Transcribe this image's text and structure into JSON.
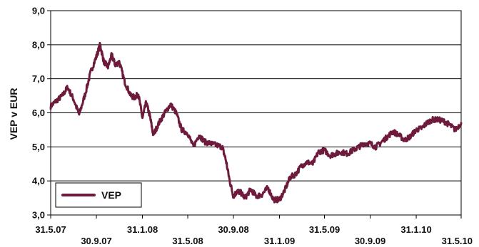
{
  "chart_data": {
    "type": "line",
    "ylabel": "VEP v EUR",
    "xlabel": "",
    "title": "",
    "ylim": [
      3.0,
      9.0
    ],
    "y_ticks": [
      "3,0",
      "4,0",
      "5,0",
      "6,0",
      "7,0",
      "8,0",
      "9,0"
    ],
    "x_ticks": [
      "31.5.07",
      "30.9.07",
      "31.1.08",
      "31.5.08",
      "30.9.08",
      "31.1.09",
      "31.5.09",
      "30.9.09",
      "31.1.10",
      "31.5.10"
    ],
    "grid": "horizontal",
    "legend_position": "bottom-left",
    "series": [
      {
        "name": "VEP",
        "color": "#6e1a3c",
        "x": [
          "2007-05-31",
          "2007-06-15",
          "2007-07-01",
          "2007-07-15",
          "2007-07-31",
          "2007-08-15",
          "2007-08-31",
          "2007-09-15",
          "2007-09-30",
          "2007-10-10",
          "2007-10-20",
          "2007-10-31",
          "2007-11-10",
          "2007-11-20",
          "2007-11-30",
          "2007-12-15",
          "2007-12-31",
          "2008-01-10",
          "2008-01-20",
          "2008-01-31",
          "2008-02-10",
          "2008-02-20",
          "2008-02-29",
          "2008-03-15",
          "2008-03-31",
          "2008-04-15",
          "2008-04-30",
          "2008-05-15",
          "2008-05-31",
          "2008-06-15",
          "2008-06-30",
          "2008-07-15",
          "2008-07-31",
          "2008-08-15",
          "2008-08-31",
          "2008-09-10",
          "2008-09-20",
          "2008-09-30",
          "2008-10-10",
          "2008-10-20",
          "2008-10-31",
          "2008-11-15",
          "2008-11-30",
          "2008-12-15",
          "2008-12-31",
          "2009-01-15",
          "2009-01-31",
          "2009-02-15",
          "2009-02-28",
          "2009-03-15",
          "2009-03-31",
          "2009-04-15",
          "2009-04-30",
          "2009-05-15",
          "2009-05-31",
          "2009-06-15",
          "2009-06-30",
          "2009-07-15",
          "2009-07-31",
          "2009-08-15",
          "2009-08-31",
          "2009-09-15",
          "2009-09-30",
          "2009-10-15",
          "2009-10-31",
          "2009-11-15",
          "2009-11-30",
          "2009-12-15",
          "2009-12-31",
          "2010-01-15",
          "2010-01-31",
          "2010-02-15",
          "2010-02-28",
          "2010-03-15",
          "2010-03-31",
          "2010-04-15",
          "2010-04-30",
          "2010-05-15",
          "2010-05-31"
        ],
        "values": [
          6.2,
          6.35,
          6.5,
          6.75,
          6.4,
          5.95,
          6.55,
          7.2,
          7.65,
          8.0,
          7.5,
          7.35,
          7.7,
          7.4,
          7.5,
          6.9,
          6.5,
          6.45,
          6.55,
          5.85,
          6.3,
          5.9,
          5.35,
          5.7,
          6.0,
          6.25,
          6.0,
          5.5,
          5.4,
          5.0,
          5.35,
          5.15,
          5.1,
          5.05,
          5.0,
          4.6,
          4.0,
          3.55,
          3.7,
          3.65,
          3.5,
          3.75,
          3.55,
          3.6,
          3.8,
          3.45,
          3.45,
          3.75,
          4.1,
          4.2,
          4.45,
          4.55,
          4.5,
          4.85,
          4.9,
          4.75,
          4.8,
          4.85,
          4.8,
          4.9,
          5.0,
          5.1,
          5.1,
          5.0,
          5.15,
          5.3,
          5.45,
          5.35,
          5.2,
          5.3,
          5.5,
          5.55,
          5.7,
          5.8,
          5.8,
          5.75,
          5.65,
          5.5,
          5.7
        ]
      }
    ]
  }
}
